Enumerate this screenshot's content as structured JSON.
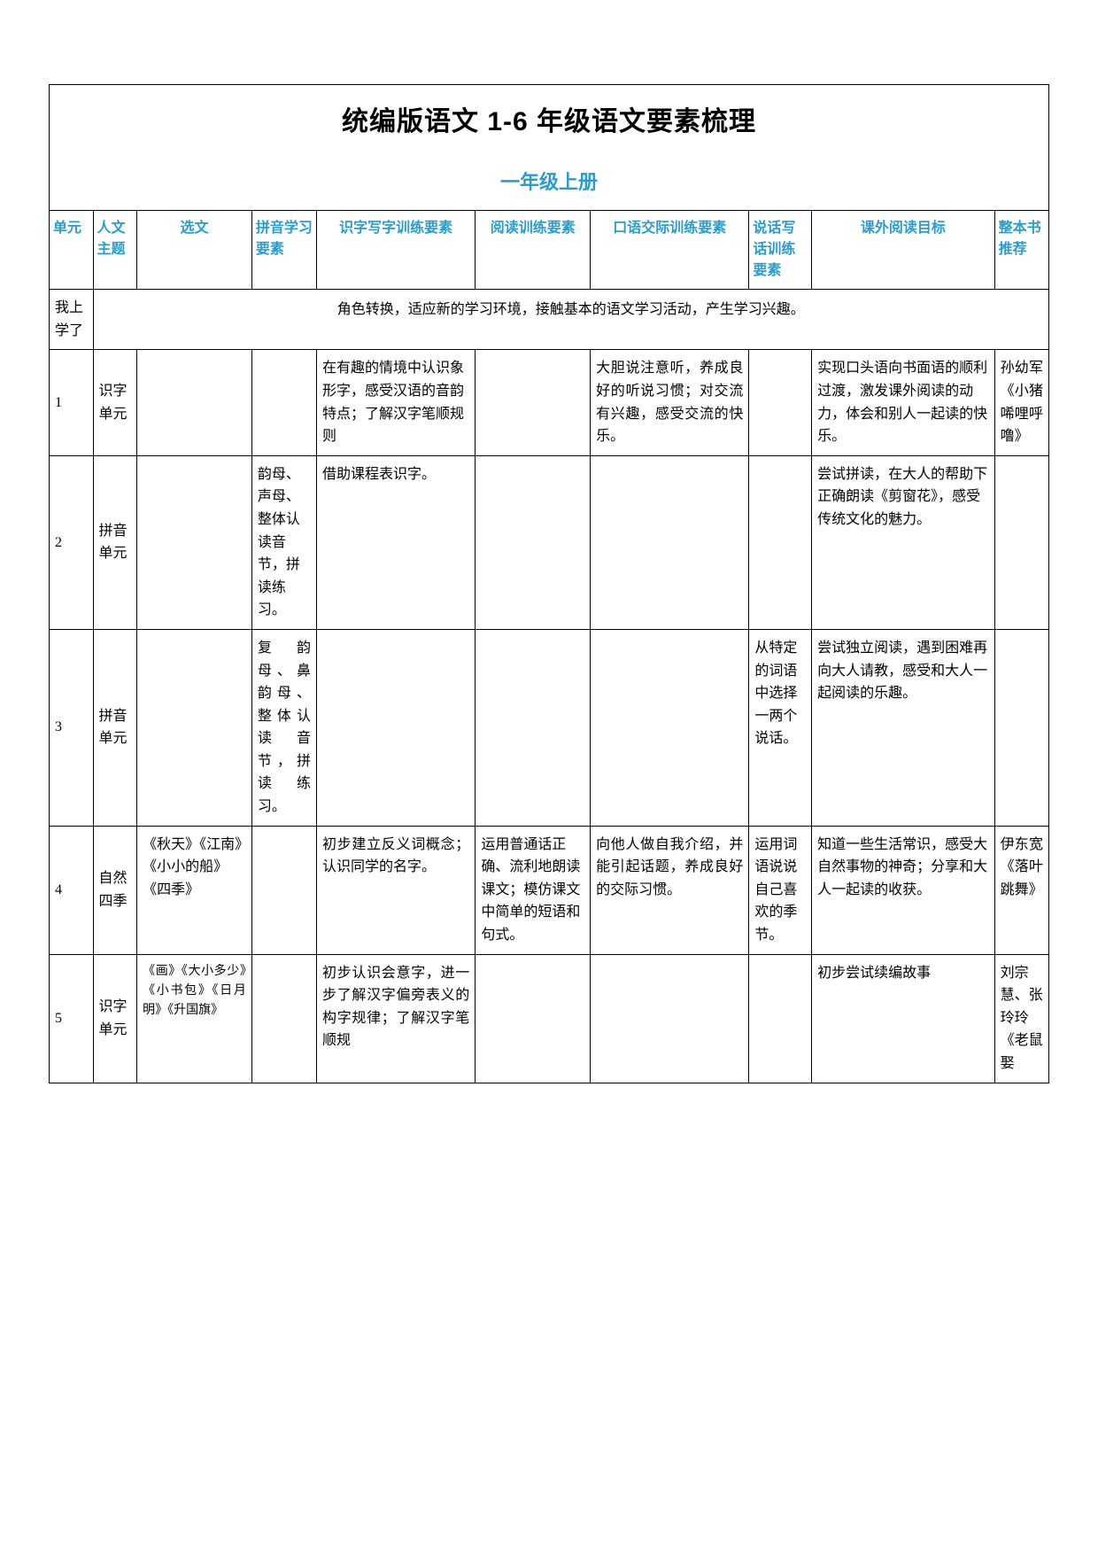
{
  "title": "统编版语文 1-6 年级语文要素梳理",
  "subtitle": "一年级上册",
  "headers": {
    "unit": "单元",
    "theme": "人文主题",
    "texts": "选文",
    "pinyin": "拼音学习要素",
    "literacy": "识字写字训练要素",
    "reading": "阅读训练要素",
    "speaking": "口语交际训练要素",
    "writing": "说话写话训练要素",
    "extra_reading": "课外阅读目标",
    "book": "整本书推荐"
  },
  "intro_row": {
    "label": "我上学了",
    "content": "角色转换，适应新的学习环境，接触基本的语文学习活动，产生学习兴趣。"
  },
  "rows": [
    {
      "unit": "1",
      "theme": "识字单元",
      "texts": "",
      "pinyin": "",
      "literacy": "在有趣的情境中认识象形字，感受汉语的音韵特点；了解汉字笔顺规则",
      "reading": "",
      "speaking": "大胆说注意听，养成良好的听说习惯；对交流有兴趣，感受交流的快乐。",
      "writing": "",
      "extra_reading": "实现口头语向书面语的顺利过渡，激发课外阅读的动力，体会和别人一起读的快乐。",
      "book": "孙幼军《小猪唏哩呼噜》"
    },
    {
      "unit": "2",
      "theme": "拼音单元",
      "texts": "",
      "pinyin": "韵母、声母、整体认读音节，拼读练习。",
      "literacy": "借助课程表识字。",
      "reading": "",
      "speaking": "",
      "writing": "",
      "extra_reading": "尝试拼读，在大人的帮助下正确朗读《剪窗花》，感受传统文化的魅力。",
      "book": ""
    },
    {
      "unit": "3",
      "theme": "拼音单元",
      "texts": "",
      "pinyin": "复韵母、鼻韵母、整体认读音节，拼读练习。",
      "literacy": "",
      "reading": "",
      "speaking": "",
      "writing": "从特定的词语中选择一两个说话。",
      "extra_reading": "尝试独立阅读，遇到困难再向大人请教，感受和大人一起阅读的乐趣。",
      "book": ""
    },
    {
      "unit": "4",
      "theme": "自然四季",
      "texts": "《秋天》《江南》《小小的船》《四季》",
      "pinyin": "",
      "literacy": "初步建立反义词概念；认识同学的名字。",
      "reading": "运用普通话正确、流利地朗读课文；模仿课文中简单的短语和句式。",
      "speaking": "向他人做自我介绍，并能引起话题，养成良好的交际习惯。",
      "writing": "运用词语说说自己喜欢的季节。",
      "extra_reading": "知道一些生活常识，感受大自然事物的神奇；分享和大人一起读的收获。",
      "book": "伊东宽《落叶跳舞》"
    },
    {
      "unit": "5",
      "theme": "识字单元",
      "texts": "《画》《大小多少》《小书包》《日月明》《升国旗》",
      "pinyin": "",
      "literacy": "初步认识会意字，进一步了解汉字偏旁表义的构字规律；了解汉字笔顺规",
      "reading": "",
      "speaking": "",
      "writing": "",
      "extra_reading": "初步尝试续编故事",
      "book": "刘宗慧、张玲玲《老鼠娶"
    }
  ],
  "colors": {
    "header_text": "#2e9cc9",
    "border": "#000000",
    "text": "#000000",
    "background": "#ffffff"
  },
  "typography": {
    "title_fontsize": 30,
    "subtitle_fontsize": 22,
    "header_fontsize": 16,
    "cell_fontsize": 16
  }
}
